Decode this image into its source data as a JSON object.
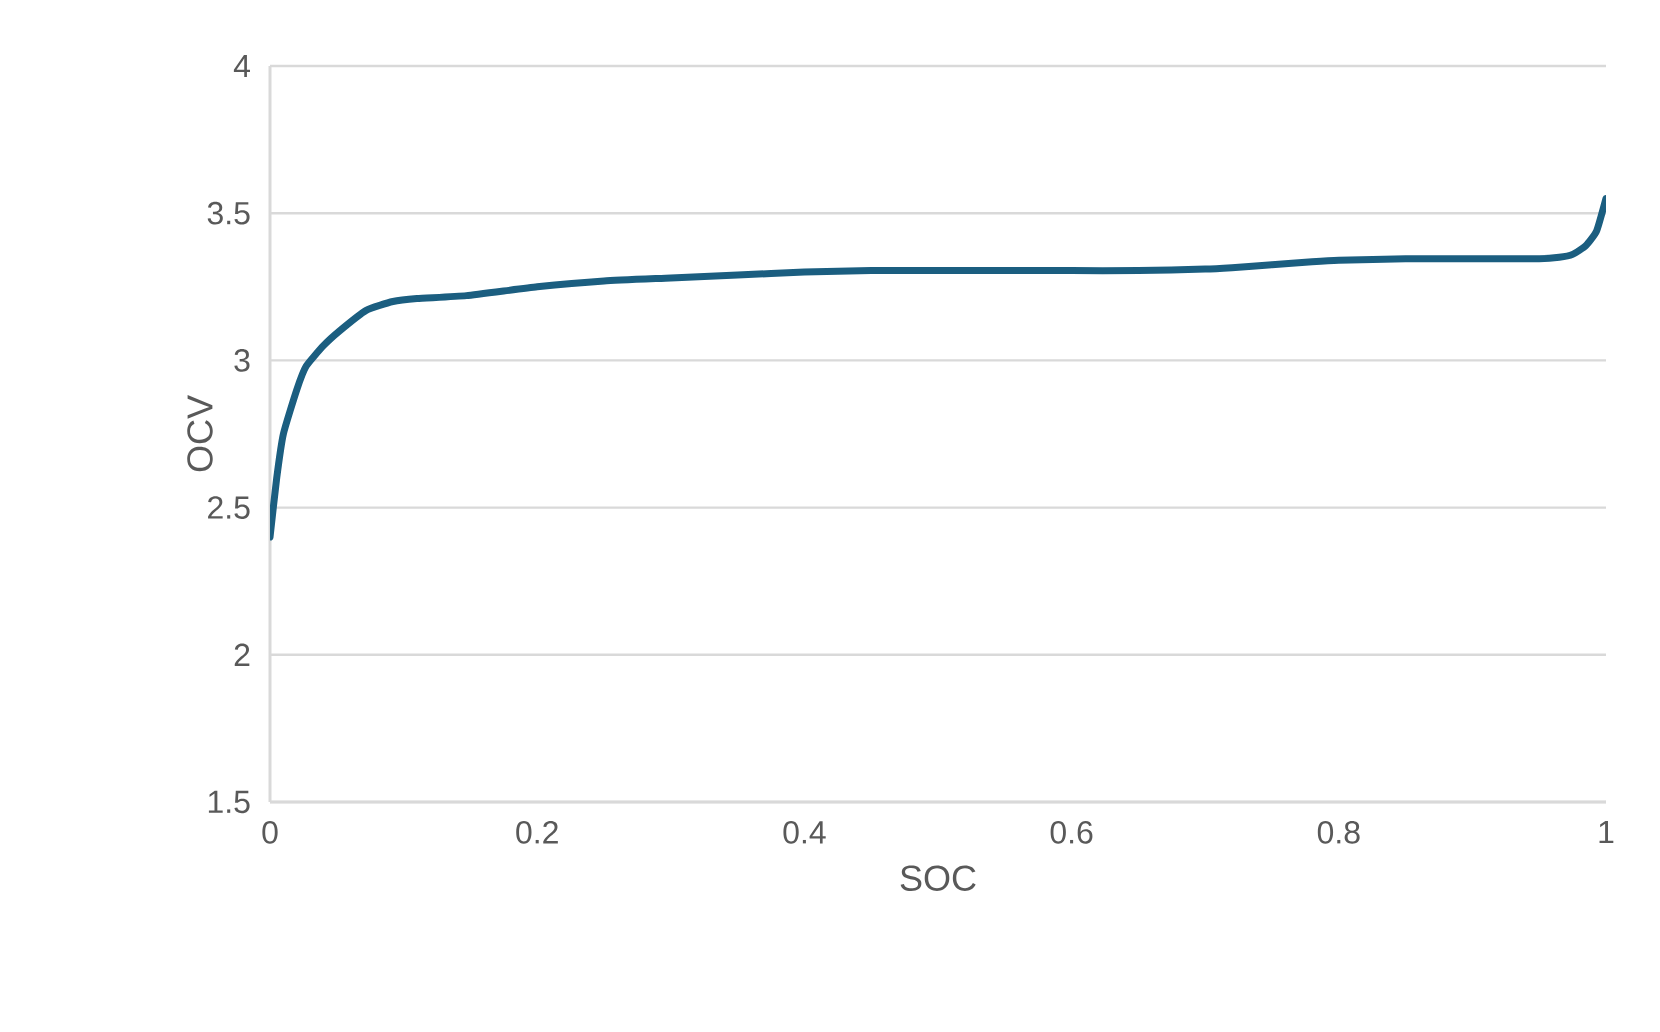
{
  "chart_data": {
    "type": "line",
    "xlabel": "SOC",
    "ylabel": "OCV",
    "x": [
      0,
      0.005,
      0.01,
      0.02,
      0.027,
      0.04,
      0.052,
      0.072,
      0.092,
      0.11,
      0.147,
      0.2,
      0.25,
      0.3,
      0.35,
      0.4,
      0.45,
      0.5,
      0.6,
      0.65,
      0.7,
      0.72,
      0.75,
      0.78,
      0.8,
      0.85,
      0.9,
      0.95,
      0.965,
      0.975,
      0.985,
      0.993,
      1.0
    ],
    "series": [
      {
        "color": "#1b5e80",
        "values": [
          2.4,
          2.6,
          2.75,
          2.9,
          2.98,
          3.05,
          3.1,
          3.17,
          3.2,
          3.21,
          3.22,
          3.25,
          3.27,
          3.28,
          3.29,
          3.3,
          3.305,
          3.305,
          3.305,
          3.305,
          3.31,
          3.315,
          3.325,
          3.335,
          3.34,
          3.345,
          3.345,
          3.345,
          3.35,
          3.36,
          3.39,
          3.44,
          3.55
        ]
      }
    ],
    "xlim": [
      0,
      1
    ],
    "ylim": [
      1.5,
      4
    ],
    "xticks": [
      0,
      0.2,
      0.4,
      0.6,
      0.8,
      1
    ],
    "yticks": [
      1.5,
      2,
      2.5,
      3,
      3.5,
      4
    ],
    "grid": "y",
    "marker": "none",
    "line_style": "solid"
  }
}
